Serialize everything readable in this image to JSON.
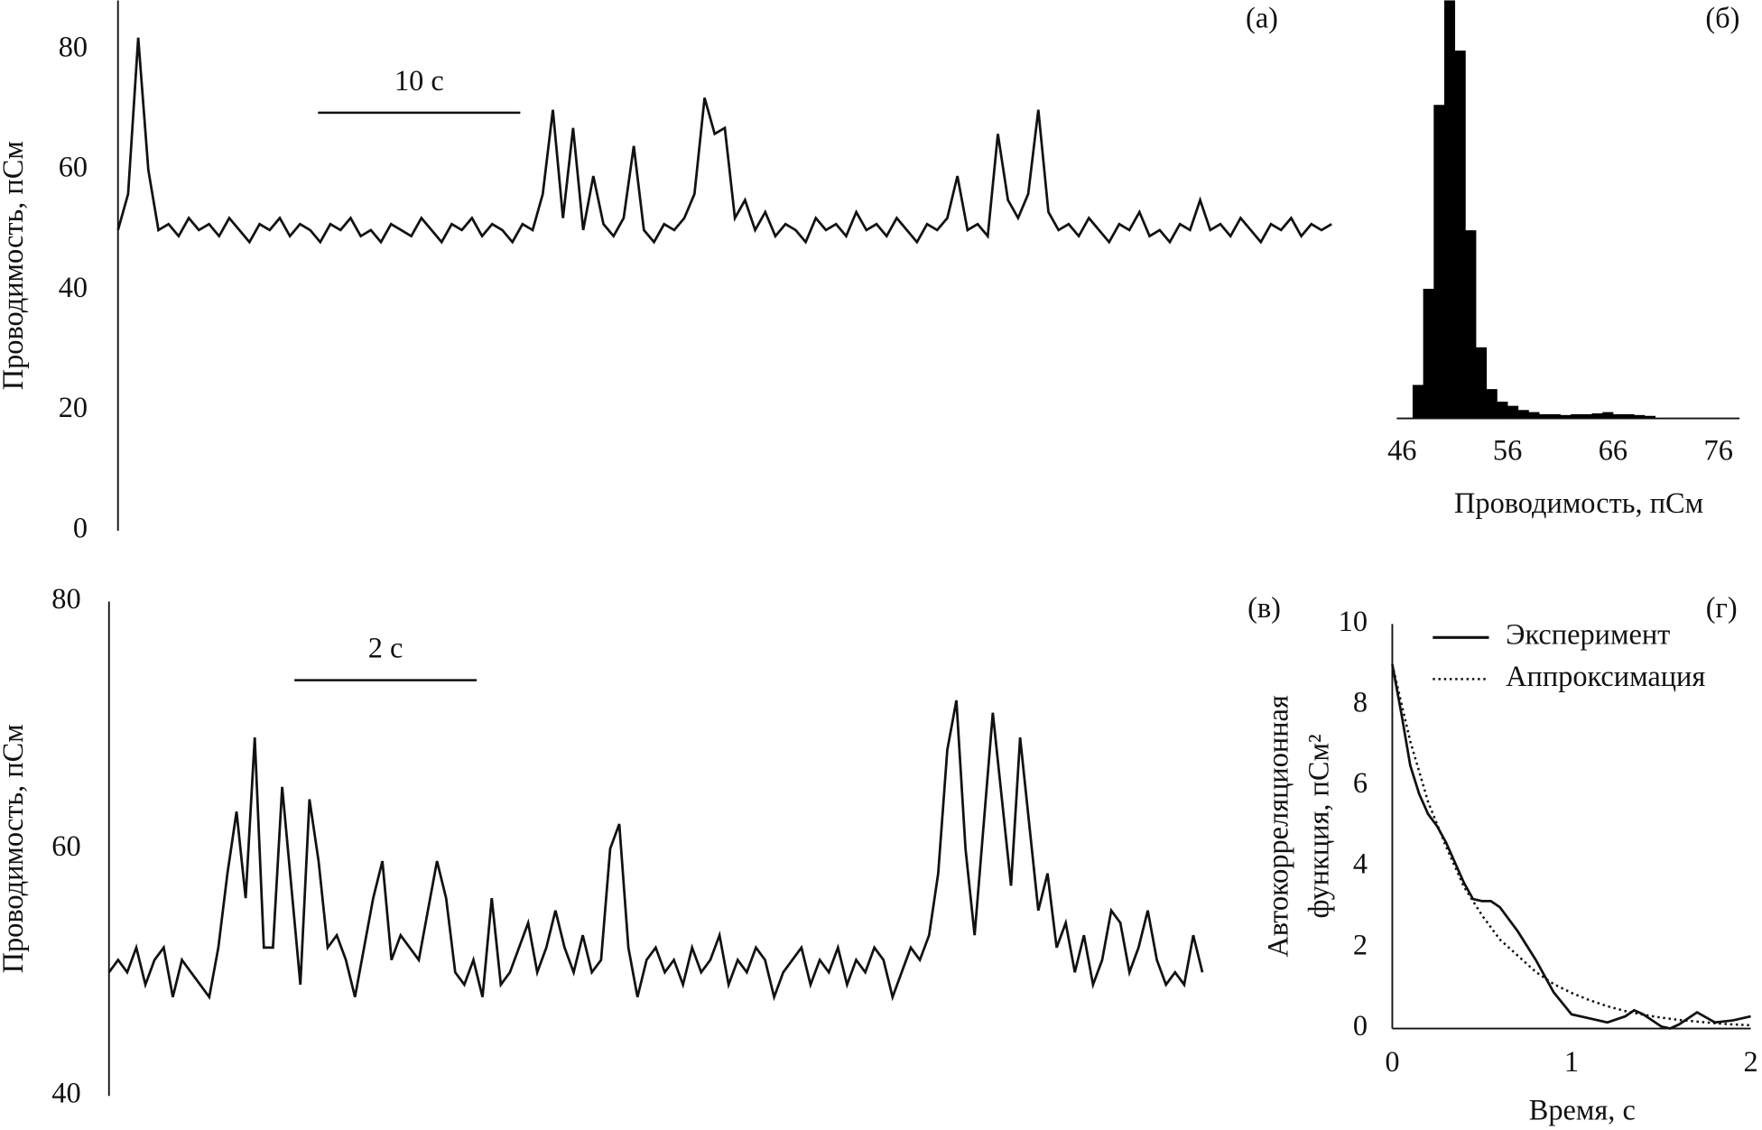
{
  "chart_data": [
    {
      "type": "line",
      "panel_label": "(а)",
      "ylabel": "Проводимость, пСм",
      "ylim": [
        0,
        88.2
      ],
      "yticks": [
        0,
        20,
        40,
        60,
        80
      ],
      "xlim": [
        0,
        60
      ],
      "scale_bar": {
        "label": "10 с",
        "length": 10
      },
      "series": [
        {
          "color": "#111111",
          "x": [
            0,
            0.5,
            1,
            1.5,
            2,
            2.5,
            3,
            3.5,
            4,
            4.5,
            5,
            5.5,
            6,
            6.5,
            7,
            7.5,
            8,
            8.5,
            9,
            9.5,
            10,
            10.5,
            11,
            11.5,
            12,
            12.5,
            13,
            13.5,
            14,
            14.5,
            15,
            15.5,
            16,
            16.5,
            17,
            17.5,
            18,
            18.5,
            19,
            19.5,
            20,
            20.5,
            21,
            21.5,
            22,
            22.5,
            23,
            23.5,
            24,
            24.5,
            25,
            25.5,
            26,
            26.5,
            27,
            27.5,
            28,
            28.5,
            29,
            29.5,
            30,
            30.5,
            31,
            31.5,
            32,
            32.5,
            33,
            33.5,
            34,
            34.5,
            35,
            35.5,
            36,
            36.5,
            37,
            37.5,
            38,
            38.5,
            39,
            39.5,
            40,
            40.5,
            41,
            41.5,
            42,
            42.5,
            43,
            43.5,
            44,
            44.5,
            45,
            45.5,
            46,
            46.5,
            47,
            47.5,
            48,
            48.5,
            49,
            49.5,
            50,
            50.5,
            51,
            51.5,
            52,
            52.5,
            53,
            53.5,
            54,
            54.5,
            55,
            55.5,
            56,
            56.5,
            57,
            57.5,
            58,
            58.5,
            59,
            59.5,
            60
          ],
          "values": [
            50,
            56,
            82,
            60,
            50,
            51,
            49,
            52,
            50,
            51,
            49,
            52,
            50,
            48,
            51,
            50,
            52,
            49,
            51,
            50,
            48,
            51,
            50,
            52,
            49,
            50,
            48,
            51,
            50,
            49,
            52,
            50,
            48,
            51,
            50,
            52,
            49,
            51,
            50,
            48,
            51,
            50,
            56,
            70,
            52,
            67,
            50,
            59,
            51,
            49,
            52,
            64,
            50,
            48,
            51,
            50,
            52,
            56,
            72,
            66,
            67,
            52,
            55,
            50,
            53,
            49,
            51,
            50,
            48,
            52,
            50,
            51,
            49,
            53,
            50,
            51,
            49,
            52,
            50,
            48,
            51,
            50,
            52,
            59,
            50,
            51,
            49,
            66,
            55,
            52,
            56,
            70,
            53,
            50,
            51,
            49,
            52,
            50,
            48,
            51,
            50,
            53,
            49,
            50,
            48,
            51,
            50,
            55,
            50,
            51,
            49,
            52,
            50,
            48,
            51,
            50,
            52,
            49,
            51,
            50,
            51
          ]
        }
      ]
    },
    {
      "type": "histogram",
      "panel_label": "(б)",
      "xlabel": "Проводимость, пСм",
      "xlim": [
        45.5,
        78
      ],
      "xticks": [
        46,
        56,
        66,
        76
      ],
      "ylim": [
        0,
        100
      ],
      "color": "#000000",
      "bins": [
        47,
        48,
        49,
        50,
        51,
        52,
        53,
        54,
        55,
        56,
        57,
        58,
        59,
        60,
        61,
        62,
        63,
        64,
        65,
        66,
        67,
        68,
        69,
        70
      ],
      "counts": [
        8,
        31,
        75,
        100,
        88,
        45,
        17,
        7,
        4,
        3,
        2,
        1.5,
        1,
        1,
        0.8,
        1,
        1,
        1.2,
        1.5,
        1,
        1,
        0.8,
        0.6
      ]
    },
    {
      "type": "line",
      "panel_label": "(в)",
      "ylabel": "Проводимость, пСм",
      "ylim": [
        40,
        80
      ],
      "yticks": [
        40,
        60,
        80
      ],
      "xlim": [
        0,
        12
      ],
      "scale_bar": {
        "label": "2 с",
        "length": 2
      },
      "series": [
        {
          "color": "#111111",
          "x": [
            0,
            0.1,
            0.2,
            0.3,
            0.4,
            0.5,
            0.6,
            0.7,
            0.8,
            0.9,
            1,
            1.1,
            1.2,
            1.3,
            1.4,
            1.5,
            1.6,
            1.7,
            1.8,
            1.9,
            2,
            2.1,
            2.2,
            2.3,
            2.4,
            2.5,
            2.6,
            2.7,
            2.8,
            2.9,
            3,
            3.1,
            3.2,
            3.3,
            3.4,
            3.5,
            3.6,
            3.7,
            3.8,
            3.9,
            4,
            4.1,
            4.2,
            4.3,
            4.4,
            4.5,
            4.6,
            4.7,
            4.8,
            4.9,
            5,
            5.1,
            5.2,
            5.3,
            5.4,
            5.5,
            5.6,
            5.7,
            5.8,
            5.9,
            6,
            6.1,
            6.2,
            6.3,
            6.4,
            6.5,
            6.6,
            6.7,
            6.8,
            6.9,
            7,
            7.1,
            7.2,
            7.3,
            7.4,
            7.5,
            7.6,
            7.7,
            7.8,
            7.9,
            8,
            8.1,
            8.2,
            8.3,
            8.4,
            8.5,
            8.6,
            8.7,
            8.8,
            8.9,
            9,
            9.1,
            9.2,
            9.3,
            9.4,
            9.5,
            9.6,
            9.7,
            9.8,
            9.9,
            10,
            10.1,
            10.2,
            10.3,
            10.4,
            10.5,
            10.6,
            10.7,
            10.8,
            10.9,
            11,
            11.1,
            11.2,
            11.3,
            11.4,
            11.5,
            11.6,
            11.7,
            11.8,
            11.9,
            12
          ],
          "values": [
            50,
            51,
            50,
            52,
            49,
            51,
            52,
            48,
            51,
            50,
            49,
            48,
            52,
            58,
            63,
            56,
            69,
            52,
            52,
            65,
            57,
            49,
            64,
            59,
            52,
            53,
            51,
            48,
            52,
            56,
            59,
            51,
            53,
            52,
            51,
            55,
            59,
            56,
            50,
            49,
            51,
            48,
            56,
            49,
            50,
            52,
            54,
            50,
            52,
            55,
            52,
            50,
            53,
            50,
            51,
            60,
            62,
            52,
            48,
            51,
            52,
            50,
            51,
            49,
            52,
            50,
            51,
            53,
            49,
            51,
            50,
            52,
            51,
            48,
            50,
            51,
            52,
            49,
            51,
            50,
            52,
            49,
            51,
            50,
            52,
            51,
            48,
            50,
            52,
            51,
            53,
            58,
            68,
            72,
            60,
            53,
            62,
            71,
            64,
            57,
            69,
            62,
            55,
            58,
            52,
            54,
            50,
            53,
            49,
            51,
            55,
            54,
            50,
            52,
            55,
            51,
            49,
            50,
            49,
            53,
            50
          ]
        }
      ]
    },
    {
      "type": "line",
      "panel_label": "(г)",
      "xlabel": "Время, с",
      "ylabel": [
        "Автокорреляционная",
        "функция, пСм²"
      ],
      "xlim": [
        0,
        2
      ],
      "xticks": [
        0,
        1,
        2
      ],
      "ylim": [
        0,
        10
      ],
      "yticks": [
        0,
        2,
        4,
        6,
        8,
        10
      ],
      "series": [
        {
          "name": "Эксперимент",
          "color": "#111111",
          "dash": "solid",
          "x": [
            0,
            0.05,
            0.1,
            0.15,
            0.2,
            0.25,
            0.3,
            0.35,
            0.4,
            0.45,
            0.5,
            0.55,
            0.6,
            0.7,
            0.8,
            0.9,
            1,
            1.1,
            1.2,
            1.3,
            1.35,
            1.4,
            1.5,
            1.55,
            1.6,
            1.7,
            1.8,
            1.9,
            2
          ],
          "values": [
            9,
            7.8,
            6.5,
            5.8,
            5.3,
            5,
            4.6,
            4.1,
            3.6,
            3.2,
            3.15,
            3.15,
            3,
            2.4,
            1.7,
            0.9,
            0.35,
            0.25,
            0.15,
            0.3,
            0.45,
            0.35,
            0.05,
            0,
            0.1,
            0.4,
            0.15,
            0.2,
            0.3
          ]
        },
        {
          "name": "Аппроксимация",
          "color": "#111111",
          "dash": "dotted",
          "x": [
            0,
            0.1,
            0.2,
            0.3,
            0.4,
            0.5,
            0.6,
            0.7,
            0.8,
            0.9,
            1,
            1.1,
            1.2,
            1.3,
            1.4,
            1.5,
            1.6,
            1.7,
            1.8,
            1.9,
            2
          ],
          "values": [
            9,
            7.1,
            5.6,
            4.5,
            3.5,
            2.8,
            2.2,
            1.8,
            1.4,
            1.1,
            0.88,
            0.7,
            0.55,
            0.43,
            0.34,
            0.27,
            0.21,
            0.17,
            0.13,
            0.1,
            0.08
          ]
        }
      ]
    }
  ]
}
